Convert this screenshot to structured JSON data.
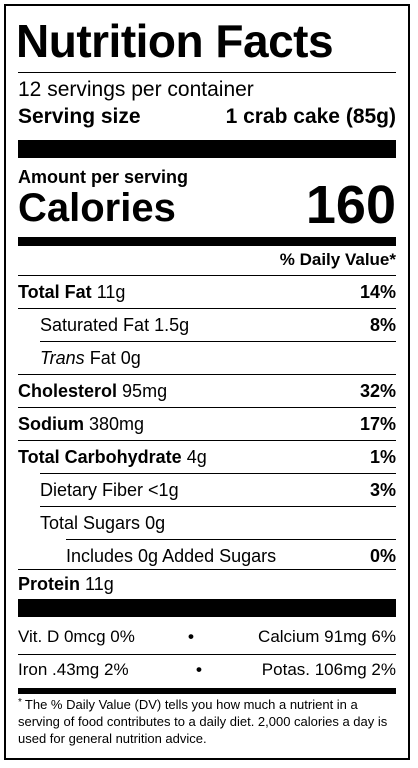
{
  "title": "Nutrition Facts",
  "servings_per_container": "12 servings per container",
  "serving_size_label": "Serving size",
  "serving_size_value": "1 crab cake (85g)",
  "amount_per_serving": "Amount per serving",
  "calories_label": "Calories",
  "calories_value": "160",
  "dv_header": "% Daily Value*",
  "nutrients": [
    {
      "name": "Total Fat",
      "amount": "11g",
      "dv": "14%"
    },
    {
      "name": "Saturated Fat",
      "amount": "1.5g",
      "dv": "8%"
    },
    {
      "name": "Trans",
      "amount": "Fat 0g",
      "dv": ""
    },
    {
      "name": "Cholesterol",
      "amount": "95mg",
      "dv": "32%"
    },
    {
      "name": "Sodium",
      "amount": "380mg",
      "dv": "17%"
    },
    {
      "name": "Total Carbohydrate",
      "amount": "4g",
      "dv": "1%"
    },
    {
      "name": "Dietary Fiber",
      "amount": "<1g",
      "dv": "3%"
    },
    {
      "name": "Total Sugars",
      "amount": "0g",
      "dv": ""
    },
    {
      "name": "Includes 0g Added Sugars",
      "amount": "",
      "dv": "0%"
    },
    {
      "name": "Protein",
      "amount": "11g",
      "dv": ""
    }
  ],
  "vitamins": [
    {
      "left": "Vit. D 0mcg 0%",
      "right": "Calcium 91mg 6%"
    },
    {
      "left": "Iron .43mg 2%",
      "right": "Potas. 106mg 2%"
    }
  ],
  "bullet": "•",
  "footnote_marker": "*",
  "footnote": "The % Daily Value (DV) tells you how much a nutrient in a serving of food contributes to a daily diet. 2,000 calories a day is used for general nutrition advice."
}
